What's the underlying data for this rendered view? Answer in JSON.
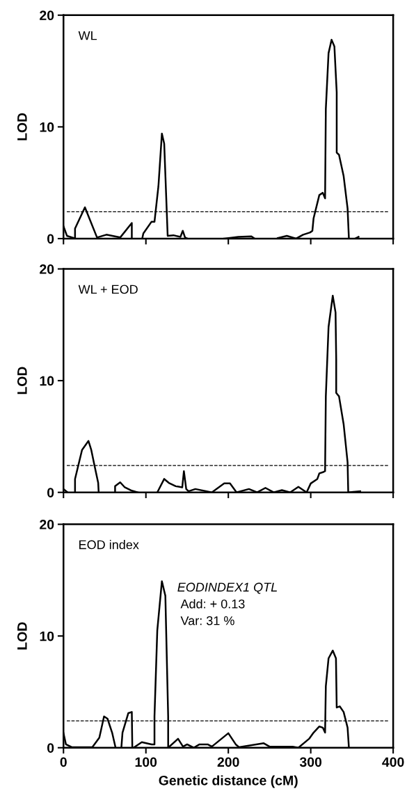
{
  "chart_data": [
    {
      "type": "line",
      "title": "WL",
      "ylabel": "LOD",
      "xlim": [
        0,
        400
      ],
      "xticks": [
        0,
        100,
        200,
        300,
        400
      ],
      "ylim": [
        0,
        20
      ],
      "yticks": [
        0,
        10,
        20
      ],
      "tick_labels": "y",
      "grid": false,
      "legend": false,
      "marker": "none",
      "line_style": "solid",
      "ref_lines": [
        {
          "axis": "y",
          "value": 2.4,
          "color": "#000000",
          "line_style": "dashed"
        }
      ],
      "series": [
        {
          "color": "#000000",
          "x": [
            0,
            4.2,
            12.6,
            null,
            14,
            14,
            26,
            40.7,
            52,
            68.8,
            82.9,
            82.9,
            null,
            95.5,
            96.9,
            106.7,
            110.4,
            115.2,
            119.4,
            122.2,
            126.4,
            126.4,
            133.4,
            141.9,
            144.7,
            147.5,
            150.3,
            null,
            195,
            212,
            228,
            232,
            null,
            260,
            271,
            282.3,
            290.7,
            299.2,
            302,
            303.4,
            310.4,
            314.6,
            317.4,
            318.3,
            321.6,
            325.3,
            328.7,
            331.5,
            331.5,
            334.3,
            339.9,
            344.7,
            346.3,
            null,
            354,
            358
          ],
          "values": [
            1.1,
            0.25,
            0.05,
            null,
            0.05,
            0.9,
            2.8,
            0.1,
            0.35,
            0.1,
            1.4,
            0,
            null,
            0,
            0.46,
            1.5,
            1.5,
            4.7,
            9.4,
            8.5,
            0.25,
            0.25,
            0.3,
            0.15,
            0.7,
            0.1,
            0,
            null,
            0,
            0.15,
            0.2,
            0,
            null,
            0.05,
            0.25,
            0,
            0.35,
            0.55,
            0.7,
            1.8,
            3.9,
            4.1,
            3.6,
            11.6,
            16.6,
            17.8,
            17.2,
            13.1,
            7.7,
            7.5,
            5.6,
            2.7,
            0,
            null,
            0,
            0.15
          ]
        }
      ]
    },
    {
      "type": "line",
      "title": "WL + EOD",
      "ylabel": "LOD",
      "xlim": [
        0,
        400
      ],
      "xticks": [
        0,
        100,
        200,
        300,
        400
      ],
      "ylim": [
        0,
        20
      ],
      "yticks": [
        0,
        10,
        20
      ],
      "tick_labels": "y",
      "grid": false,
      "legend": false,
      "marker": "none",
      "line_style": "solid",
      "ref_lines": [
        {
          "axis": "y",
          "value": 2.4,
          "color": "#000000",
          "line_style": "dashed"
        }
      ],
      "series": [
        {
          "color": "#000000",
          "x": [
            0,
            5,
            null,
            14,
            14,
            22.5,
            30.3,
            33.7,
            37.9,
            42.1,
            42.7,
            null,
            62.6,
            62.6,
            68.8,
            74.4,
            82.9,
            90,
            null,
            113.8,
            122.2,
            127.8,
            136.2,
            144.1,
            146.1,
            148.9,
            151.7,
            160,
            180,
            195,
            202,
            210,
            225,
            235,
            245,
            255,
            265,
            275,
            285,
            295,
            300,
            308,
            310.4,
            314.6,
            317.4,
            318.3,
            321.6,
            326.7,
            330.1,
            330.9,
            330.9,
            334.3,
            339.9,
            344.7,
            345.5,
            360
          ],
          "values": [
            0.3,
            0,
            null,
            0,
            1.2,
            3.8,
            4.6,
            3.8,
            2.3,
            0.85,
            0,
            null,
            0,
            0.55,
            0.9,
            0.45,
            0.15,
            0,
            null,
            0,
            1.2,
            0.85,
            0.55,
            0.45,
            1.9,
            0.3,
            0.1,
            0.3,
            0,
            0.8,
            0.8,
            0,
            0.3,
            0,
            0.4,
            0,
            0.2,
            0,
            0.5,
            0,
            0.8,
            1.2,
            1.7,
            1.8,
            1.9,
            8.6,
            14.8,
            17.6,
            16.1,
            11.9,
            8.9,
            8.6,
            6.1,
            2.7,
            0,
            0.1
          ]
        }
      ]
    },
    {
      "type": "line",
      "title": "EOD index",
      "ylabel": "LOD",
      "xlabel": "Genetic distance (cM)",
      "xlim": [
        0,
        400
      ],
      "xticks": [
        0,
        100,
        200,
        300,
        400
      ],
      "ylim": [
        0,
        20
      ],
      "yticks": [
        0,
        10,
        20
      ],
      "grid": false,
      "legend": false,
      "marker": "none",
      "line_style": "solid",
      "annotations": [
        "EODINDEX1 QTL",
        "Add: + 0.13",
        "Var: 31 %"
      ],
      "ref_lines": [
        {
          "axis": "y",
          "value": 2.4,
          "color": "#000000",
          "line_style": "dashed"
        }
      ],
      "series": [
        {
          "color": "#000000",
          "x": [
            0,
            3,
            10,
            35,
            43.5,
            49.2,
            53.4,
            59,
            63.2,
            null,
            70.2,
            71.6,
            78.7,
            82.9,
            83.5,
            null,
            85,
            95,
            107,
            110.4,
            110.4,
            113.8,
            119.4,
            123.6,
            127,
            127,
            null,
            127,
            139,
            145,
            150,
            158,
            165,
            175,
            180,
            200,
            209,
            213,
            243,
            250,
            278,
            285,
            298,
            303.4,
            310.4,
            314.6,
            317.4,
            318.3,
            321.6,
            326.7,
            330.6,
            331.5,
            335.2,
            339.9,
            344.7,
            346.3
          ],
          "values": [
            1.3,
            0.3,
            0.05,
            0.05,
            0.9,
            2.8,
            2.6,
            1.35,
            0,
            null,
            0,
            1.35,
            3.1,
            3.2,
            0,
            null,
            0,
            0.5,
            0.3,
            0.3,
            2.8,
            10.5,
            14.9,
            13.6,
            2.8,
            0,
            null,
            0,
            0.8,
            0.1,
            0.3,
            0,
            0.3,
            0.3,
            0.1,
            1.3,
            0.3,
            0.05,
            0.4,
            0.1,
            0.1,
            0,
            0.8,
            1.35,
            1.9,
            1.8,
            1.35,
            5.5,
            8,
            8.7,
            8,
            3.6,
            3.7,
            3.2,
            1.8,
            0
          ]
        }
      ]
    }
  ]
}
